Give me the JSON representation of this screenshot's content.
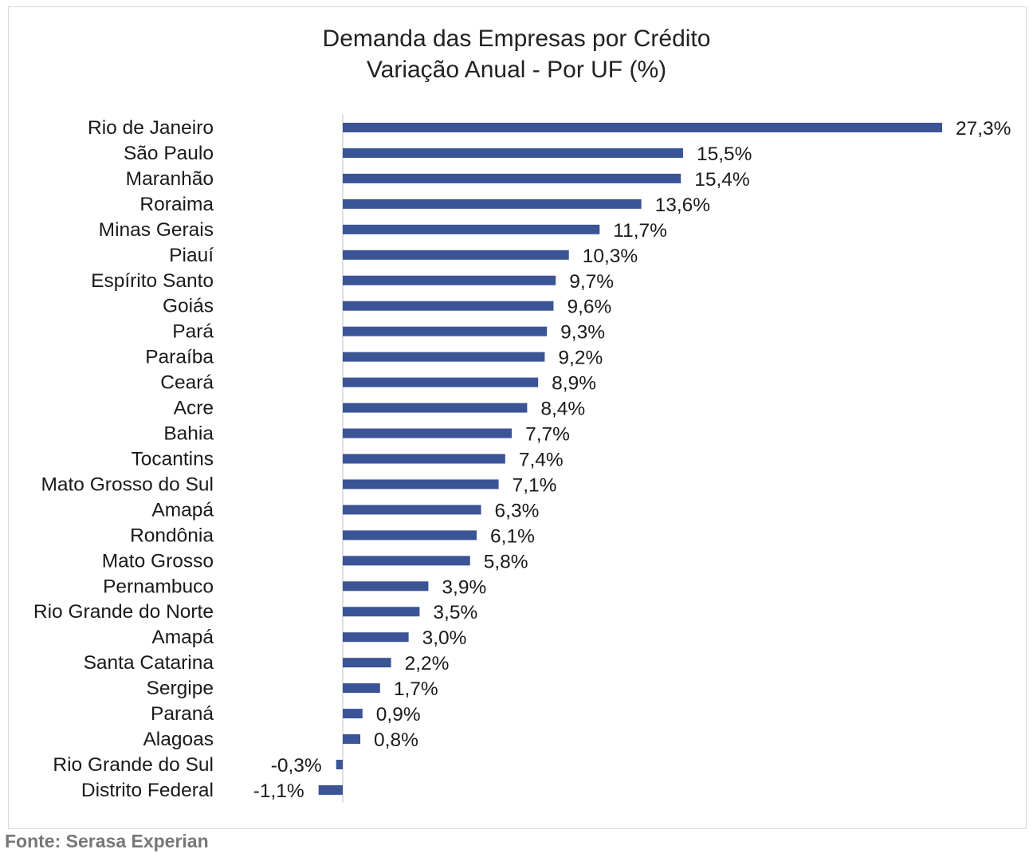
{
  "chart_data": {
    "type": "bar",
    "orientation": "horizontal",
    "title": "Demanda das Empresas por Crédito",
    "subtitle": "Variação Anual - Por UF (%)",
    "xlabel": "",
    "ylabel": "",
    "grid": false,
    "legend": "none",
    "bar_color": "#3a5496",
    "value_suffix": "%",
    "xlim": [
      -1.1,
      27.3
    ],
    "categories": [
      "Rio de Janeiro",
      "São Paulo",
      "Maranhão",
      "Roraima",
      "Minas Gerais",
      "Piauí",
      "Espírito Santo",
      "Goiás",
      "Pará",
      "Paraíba",
      "Ceará",
      "Acre",
      "Bahia",
      "Tocantins",
      "Mato Grosso do Sul",
      "Amapá",
      "Rondônia",
      "Mato Grosso",
      "Pernambuco",
      "Rio Grande do Norte",
      "Amapá",
      "Santa Catarina",
      "Sergipe",
      "Paraná",
      "Alagoas",
      "Rio Grande do Sul",
      "Distrito Federal"
    ],
    "values": [
      27.3,
      15.5,
      15.4,
      13.6,
      11.7,
      10.3,
      9.7,
      9.6,
      9.3,
      9.2,
      8.9,
      8.4,
      7.7,
      7.4,
      7.1,
      6.3,
      6.1,
      5.8,
      3.9,
      3.5,
      3.0,
      2.2,
      1.7,
      0.9,
      0.8,
      -0.3,
      -1.1
    ],
    "value_labels": [
      "27,3%",
      "15,5%",
      "15,4%",
      "13,6%",
      "11,7%",
      "10,3%",
      "9,7%",
      "9,6%",
      "9,3%",
      "9,2%",
      "8,9%",
      "8,4%",
      "7,7%",
      "7,4%",
      "7,1%",
      "6,3%",
      "6,1%",
      "5,8%",
      "3,9%",
      "3,5%",
      "3,0%",
      "2,2%",
      "1,7%",
      "0,9%",
      "0,8%",
      "-0,3%",
      "-1,1%"
    ]
  },
  "source": "Fonte: Serasa Experian"
}
